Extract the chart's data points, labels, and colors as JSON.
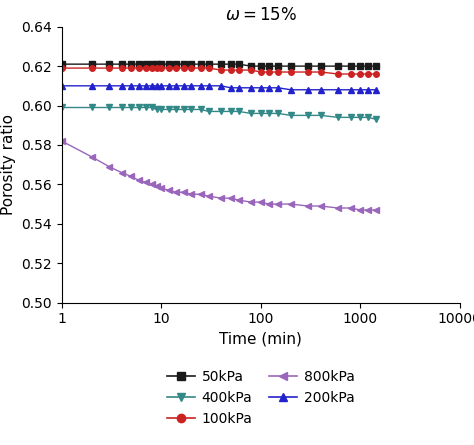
{
  "title": "$\\omega = 15\\%$",
  "xlabel": "Time (min)",
  "ylabel": "Porosity ratio",
  "xlim": [
    1,
    10000
  ],
  "ylim": [
    0.5,
    0.64
  ],
  "yticks": [
    0.5,
    0.52,
    0.54,
    0.56,
    0.58,
    0.6,
    0.62,
    0.64
  ],
  "series": [
    {
      "label": "50kPa",
      "color": "#1a1a1a",
      "marker": "s",
      "x": [
        1,
        2,
        3,
        4,
        5,
        6,
        7,
        8,
        9,
        10,
        12,
        14,
        17,
        20,
        25,
        30,
        40,
        50,
        60,
        80,
        100,
        120,
        150,
        200,
        300,
        400,
        600,
        800,
        1000,
        1200,
        1440
      ],
      "y": [
        0.621,
        0.621,
        0.621,
        0.621,
        0.621,
        0.621,
        0.621,
        0.621,
        0.621,
        0.621,
        0.621,
        0.621,
        0.621,
        0.621,
        0.621,
        0.621,
        0.621,
        0.621,
        0.621,
        0.62,
        0.62,
        0.62,
        0.62,
        0.62,
        0.62,
        0.62,
        0.62,
        0.62,
        0.62,
        0.62,
        0.62
      ]
    },
    {
      "label": "100kPa",
      "color": "#cc2222",
      "marker": "o",
      "x": [
        1,
        2,
        3,
        4,
        5,
        6,
        7,
        8,
        9,
        10,
        12,
        14,
        17,
        20,
        25,
        30,
        40,
        50,
        60,
        80,
        100,
        120,
        150,
        200,
        300,
        400,
        600,
        800,
        1000,
        1200,
        1440
      ],
      "y": [
        0.619,
        0.619,
        0.619,
        0.619,
        0.619,
        0.619,
        0.619,
        0.619,
        0.619,
        0.619,
        0.619,
        0.619,
        0.619,
        0.619,
        0.619,
        0.619,
        0.618,
        0.618,
        0.618,
        0.618,
        0.617,
        0.617,
        0.617,
        0.617,
        0.617,
        0.617,
        0.616,
        0.616,
        0.616,
        0.616,
        0.616
      ]
    },
    {
      "label": "200kPa",
      "color": "#2222cc",
      "marker": "^",
      "x": [
        1,
        2,
        3,
        4,
        5,
        6,
        7,
        8,
        9,
        10,
        12,
        14,
        17,
        20,
        25,
        30,
        40,
        50,
        60,
        80,
        100,
        120,
        150,
        200,
        300,
        400,
        600,
        800,
        1000,
        1200,
        1440
      ],
      "y": [
        0.61,
        0.61,
        0.61,
        0.61,
        0.61,
        0.61,
        0.61,
        0.61,
        0.61,
        0.61,
        0.61,
        0.61,
        0.61,
        0.61,
        0.61,
        0.61,
        0.61,
        0.609,
        0.609,
        0.609,
        0.609,
        0.609,
        0.609,
        0.608,
        0.608,
        0.608,
        0.608,
        0.608,
        0.608,
        0.608,
        0.608
      ]
    },
    {
      "label": "400kPa",
      "color": "#338888",
      "marker": "v",
      "x": [
        1,
        2,
        3,
        4,
        5,
        6,
        7,
        8,
        9,
        10,
        12,
        14,
        17,
        20,
        25,
        30,
        40,
        50,
        60,
        80,
        100,
        120,
        150,
        200,
        300,
        400,
        600,
        800,
        1000,
        1200,
        1440
      ],
      "y": [
        0.599,
        0.599,
        0.599,
        0.599,
        0.599,
        0.599,
        0.599,
        0.599,
        0.598,
        0.598,
        0.598,
        0.598,
        0.598,
        0.598,
        0.598,
        0.597,
        0.597,
        0.597,
        0.597,
        0.596,
        0.596,
        0.596,
        0.596,
        0.595,
        0.595,
        0.595,
        0.594,
        0.594,
        0.594,
        0.594,
        0.593
      ]
    },
    {
      "label": "800kPa",
      "color": "#9966bb",
      "marker": "<",
      "x": [
        1,
        2,
        3,
        4,
        5,
        6,
        7,
        8,
        9,
        10,
        12,
        14,
        17,
        20,
        25,
        30,
        40,
        50,
        60,
        80,
        100,
        120,
        150,
        200,
        300,
        400,
        600,
        800,
        1000,
        1200,
        1440
      ],
      "y": [
        0.582,
        0.574,
        0.569,
        0.566,
        0.564,
        0.562,
        0.561,
        0.56,
        0.559,
        0.558,
        0.557,
        0.556,
        0.556,
        0.555,
        0.555,
        0.554,
        0.553,
        0.553,
        0.552,
        0.551,
        0.551,
        0.55,
        0.55,
        0.55,
        0.549,
        0.549,
        0.548,
        0.548,
        0.547,
        0.547,
        0.547
      ]
    }
  ],
  "legend_col1": [
    {
      "label": "50kPa",
      "color": "#1a1a1a",
      "marker": "s"
    },
    {
      "label": "100kPa",
      "color": "#cc2222",
      "marker": "o"
    },
    {
      "label": "200kPa",
      "color": "#2222cc",
      "marker": "^"
    }
  ],
  "legend_col2": [
    {
      "label": "400kPa",
      "color": "#338888",
      "marker": "v"
    },
    {
      "label": "800kPa",
      "color": "#9966bb",
      "marker": "<"
    }
  ],
  "markersize": 4,
  "linewidth": 1.0,
  "title_fontsize": 12,
  "label_fontsize": 11,
  "tick_fontsize": 10,
  "legend_fontsize": 10
}
